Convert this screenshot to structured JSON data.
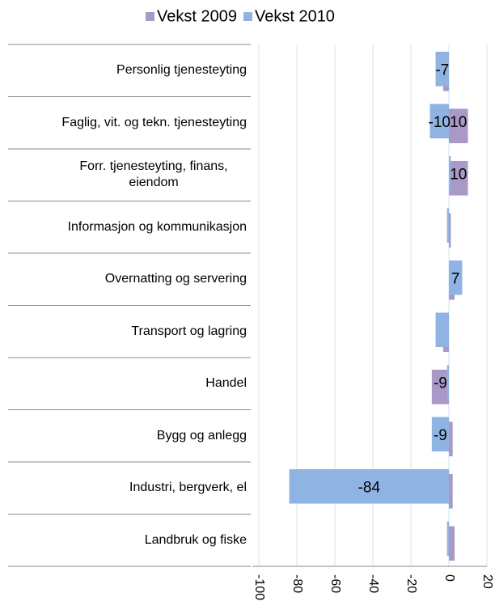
{
  "chart_data": {
    "type": "hbar",
    "categories": [
      "Personlig tjenesteyting",
      "Faglig, vit. og tekn. tjenesteyting",
      "Forr. tjenesteyting, finans, eiendom",
      "Informasjon og kommunikasjon",
      "Overnatting og servering",
      "Transport og lagring",
      "Handel",
      "Bygg og anlegg",
      "Industri, bergverk, el",
      "Landbruk og fiske"
    ],
    "series": [
      {
        "name": "Vekst 2009",
        "color": "#a899c6",
        "values": [
          -3,
          10,
          10,
          1,
          3,
          -3,
          -9,
          2,
          2,
          3
        ],
        "value_labels": [
          null,
          "10",
          "10",
          null,
          null,
          null,
          "-9",
          null,
          null,
          null
        ]
      },
      {
        "name": "Vekst 2010",
        "color": "#8fb4e3",
        "values": [
          -7,
          -10,
          1,
          -1,
          7,
          -7,
          -1,
          -9,
          -84,
          -1
        ],
        "value_labels": [
          "-7",
          "-10",
          null,
          null,
          "7",
          null,
          null,
          "-9",
          "-84",
          null
        ]
      }
    ],
    "xlim": [
      -100,
      20
    ],
    "xticks": [
      -100,
      -80,
      -60,
      -40,
      -20,
      0,
      20
    ],
    "grid": true,
    "legend": "top"
  }
}
